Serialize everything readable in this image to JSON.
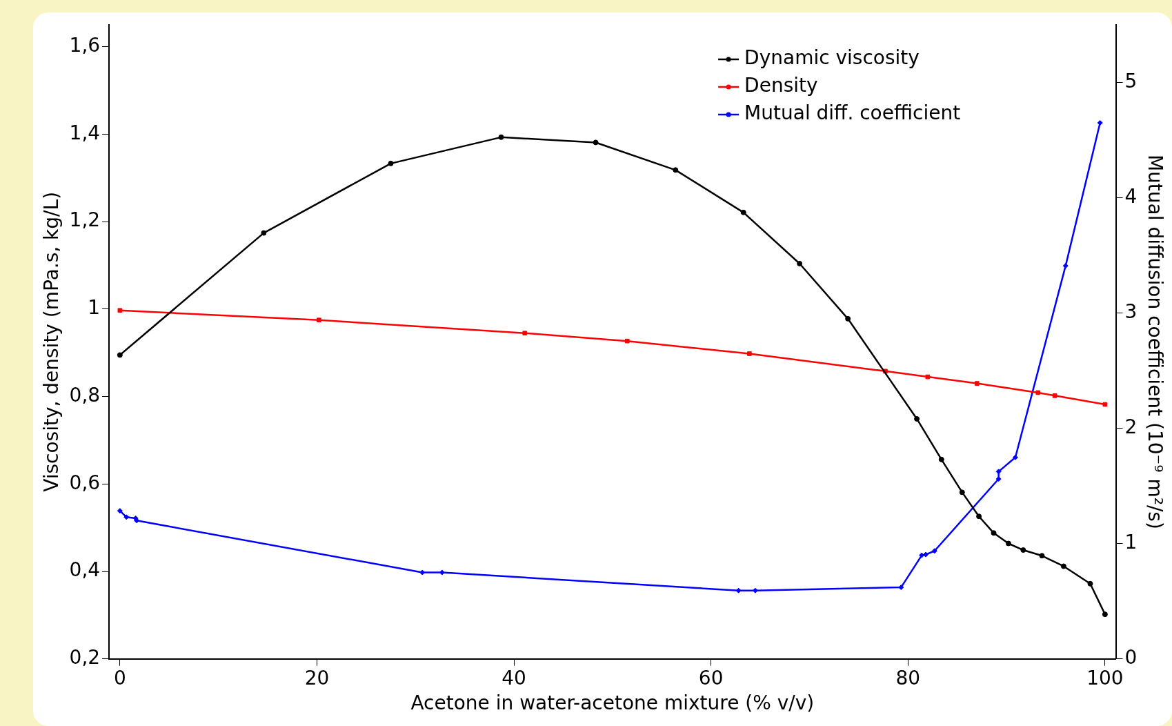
{
  "chart_data": {
    "type": "line",
    "xlabel": "Acetone in water-acetone mixture (% v/v)",
    "ylabel": "Viscosity, density (mPa.s, kg/L)",
    "y2label": "Mutual diffusion coefficient (10⁻⁹ m²/s)",
    "xlim": [
      -1.1,
      101.1
    ],
    "xticks": [
      0,
      20,
      40,
      60,
      80,
      100
    ],
    "ylim": [
      0.2,
      1.65
    ],
    "yticks": [
      {
        "value": 0.2,
        "label": "0,2"
      },
      {
        "value": 0.4,
        "label": "0,4"
      },
      {
        "value": 0.6,
        "label": "0,6"
      },
      {
        "value": 0.8,
        "label": "0,8"
      },
      {
        "value": 1,
        "label": "1"
      },
      {
        "value": 1.2,
        "label": "1,2"
      },
      {
        "value": 1.4,
        "label": "1,4"
      },
      {
        "value": 1.6,
        "label": "1,6"
      }
    ],
    "y2lim": [
      0,
      5.5
    ],
    "y2ticks": [
      0,
      1,
      2,
      3,
      4,
      5
    ],
    "grid": false,
    "legend": "top right",
    "line_style": "solid",
    "series": [
      {
        "name": "Dynamic viscosity",
        "color": "#000000",
        "marker": "circle",
        "x": [
          0,
          14.6,
          27.5,
          38.7,
          48.3,
          56.4,
          63.3,
          69.0,
          73.9,
          80.9,
          83.4,
          85.5,
          87.2,
          88.7,
          90.2,
          91.7,
          93.6,
          95.8,
          98.5,
          100
        ],
        "values": [
          0.895,
          1.174,
          1.333,
          1.393,
          1.381,
          1.318,
          1.221,
          1.104,
          0.978,
          0.749,
          0.656,
          0.581,
          0.526,
          0.488,
          0.464,
          0.449,
          0.436,
          0.412,
          0.372,
          0.302
        ]
      },
      {
        "name": "Density",
        "color": "#ff0000",
        "marker": "square",
        "x": [
          0,
          20.2,
          41.1,
          51.5,
          63.9,
          77.7,
          82.0,
          87.0,
          93.2,
          94.9,
          100
        ],
        "values": [
          0.997,
          0.975,
          0.945,
          0.927,
          0.898,
          0.858,
          0.845,
          0.83,
          0.809,
          0.802,
          0.782
        ]
      },
      {
        "name": "Mutual diff. coefficient",
        "color": "#0000ff",
        "marker": "diamond",
        "axis": "y2",
        "x": [
          0,
          0.66,
          1.6,
          1.7,
          30.7,
          32.7,
          62.8,
          64.5,
          79.3,
          81.4,
          81.8,
          82.7,
          89.2,
          89.2,
          90.9,
          96.0,
          99.5
        ],
        "values": [
          1.285,
          1.23,
          1.22,
          1.2,
          0.75,
          0.75,
          0.593,
          0.593,
          0.621,
          0.899,
          0.905,
          0.937,
          1.561,
          1.625,
          1.748,
          3.41,
          4.65
        ]
      }
    ]
  }
}
